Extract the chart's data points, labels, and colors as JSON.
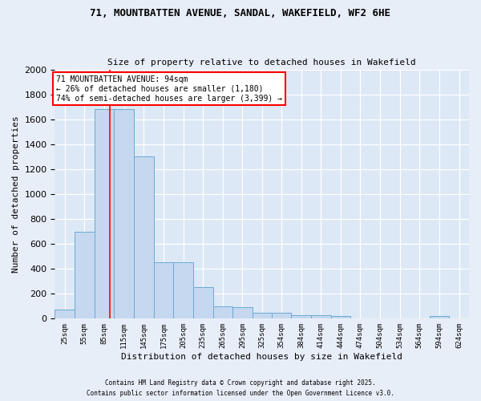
{
  "title1": "71, MOUNTBATTEN AVENUE, SANDAL, WAKEFIELD, WF2 6HE",
  "title2": "Size of property relative to detached houses in Wakefield",
  "xlabel": "Distribution of detached houses by size in Wakefield",
  "ylabel": "Number of detached properties",
  "bin_edges": [
    10,
    40,
    70,
    100,
    130,
    160,
    190,
    220,
    250,
    280,
    310,
    339,
    369,
    399,
    429,
    459,
    489,
    519,
    549,
    579,
    609,
    639
  ],
  "bar_heights": [
    70,
    700,
    1680,
    1680,
    1300,
    450,
    450,
    250,
    100,
    90,
    50,
    50,
    30,
    30,
    20,
    0,
    0,
    0,
    0,
    20,
    0
  ],
  "bar_color": "#c5d8f0",
  "bar_edge_color": "#6aaad4",
  "red_line_x": 94,
  "ylim": [
    0,
    2000
  ],
  "yticks": [
    0,
    200,
    400,
    600,
    800,
    1000,
    1200,
    1400,
    1600,
    1800,
    2000
  ],
  "x_tick_labels": [
    "25sqm",
    "55sqm",
    "85sqm",
    "115sqm",
    "145sqm",
    "175sqm",
    "205sqm",
    "235sqm",
    "265sqm",
    "295sqm",
    "325sqm",
    "354sqm",
    "384sqm",
    "414sqm",
    "444sqm",
    "474sqm",
    "504sqm",
    "534sqm",
    "564sqm",
    "594sqm",
    "624sqm"
  ],
  "annotation_text": "71 MOUNTBATTEN AVENUE: 94sqm\n← 26% of detached houses are smaller (1,180)\n74% of semi-detached houses are larger (3,399) →",
  "footer1": "Contains HM Land Registry data © Crown copyright and database right 2025.",
  "footer2": "Contains public sector information licensed under the Open Government Licence v3.0.",
  "bg_color": "#e8eef8",
  "plot_bg_color": "#dce8f5",
  "grid_color": "#ffffff"
}
